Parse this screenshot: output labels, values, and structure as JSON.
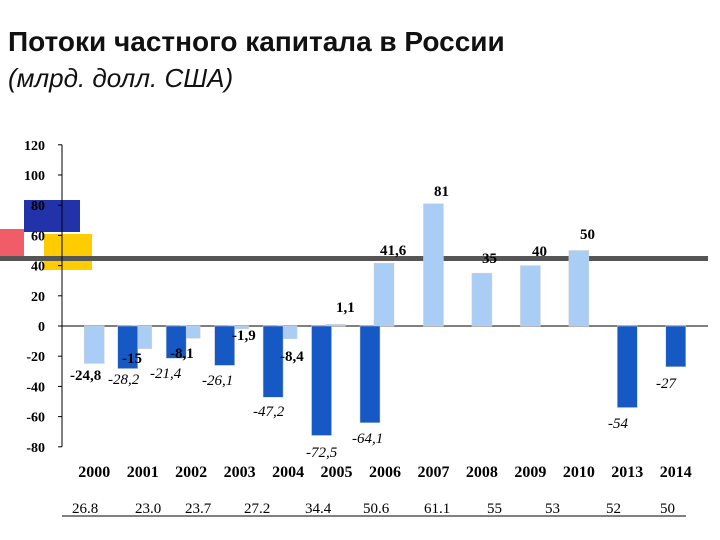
{
  "header": {
    "title": "Потоки частного капитала в России",
    "subtitle": "(млрд. долл. США)"
  },
  "colors": {
    "light_bar": "#a9cdf5",
    "dark_bar": "#1659c4",
    "blue_square": "#2233aa",
    "red_square": "#ee3344",
    "yellow_square": "#ffcc00",
    "band": "#555555"
  },
  "chart_data": {
    "type": "bar",
    "title": "Потоки частного капитала в России",
    "subtitle": "(млрд. долл. США)",
    "xlabel": "",
    "ylabel": "",
    "ylim": [
      -80,
      120
    ],
    "yticks": [
      120,
      100,
      80,
      60,
      40,
      20,
      0,
      -20,
      -40,
      -60,
      -80
    ],
    "categories": [
      "2000",
      "2001",
      "2002",
      "2003",
      "2004",
      "2005",
      "2006",
      "2007",
      "2008",
      "2009",
      "2010",
      "2013",
      "2014"
    ],
    "series": [
      {
        "name": "light",
        "values": [
          -24.8,
          -15,
          -8.1,
          -1.9,
          -8.4,
          1.1,
          41.6,
          81,
          35,
          40,
          50,
          null,
          null
        ],
        "labels": [
          "-24,8",
          "-15",
          "-8,1",
          "-1,9",
          "-8,4",
          "1,1",
          "41,6",
          "81",
          "35",
          "40",
          "50",
          "",
          ""
        ]
      },
      {
        "name": "dark",
        "values": [
          null,
          -28.2,
          -21.4,
          -26.1,
          -47.2,
          -72.5,
          -64.1,
          null,
          null,
          null,
          null,
          -54,
          -27
        ],
        "labels": [
          "",
          "-28,2",
          "-21,4",
          "-26,1",
          "-47,2",
          "-72,5",
          "-64,1",
          "",
          "",
          "",
          "",
          "-54",
          "-27"
        ]
      }
    ],
    "bottom_row": [
      "26.8",
      "23.0",
      "23.7",
      "27.2",
      "34.4",
      "50.6",
      "61.1",
      "55",
      "53",
      "52",
      "50"
    ]
  }
}
